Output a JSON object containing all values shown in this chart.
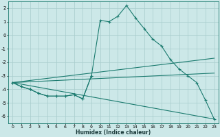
{
  "xlabel": "Humidex (Indice chaleur)",
  "bg_color": "#cce8e8",
  "line_color": "#1a7a6e",
  "grid_color": "#a8cccc",
  "xlim": [
    -0.5,
    23.5
  ],
  "ylim": [
    -6.5,
    2.5
  ],
  "yticks": [
    2,
    1,
    0,
    -1,
    -2,
    -3,
    -4,
    -5,
    -6
  ],
  "xticks": [
    0,
    1,
    2,
    3,
    4,
    5,
    6,
    7,
    8,
    9,
    10,
    11,
    12,
    13,
    14,
    15,
    16,
    17,
    18,
    19,
    20,
    21,
    22,
    23
  ],
  "line_main_x": [
    0,
    1,
    2,
    3,
    4,
    5,
    6,
    7,
    8,
    9,
    10,
    11,
    12,
    13,
    14,
    15,
    16,
    17,
    18,
    19,
    20,
    21,
    22,
    23
  ],
  "line_main_y": [
    -3.5,
    -3.8,
    -4.0,
    -4.3,
    -4.5,
    -4.5,
    -4.5,
    -4.4,
    -4.7,
    -3.0,
    1.1,
    1.0,
    1.4,
    2.2,
    1.3,
    0.5,
    -0.3,
    -0.8,
    -1.8,
    -2.5,
    -3.0,
    -3.5,
    -4.8,
    -6.2
  ],
  "line_partial_x": [
    0,
    1,
    2,
    3,
    4,
    5,
    6,
    7,
    8,
    9
  ],
  "line_partial_y": [
    -3.5,
    -3.8,
    -4.0,
    -4.3,
    -4.5,
    -4.5,
    -4.5,
    -4.4,
    -4.7,
    -3.0
  ],
  "line_trend1_x": [
    0,
    23
  ],
  "line_trend1_y": [
    -3.5,
    -1.7
  ],
  "line_trend2_x": [
    0,
    23
  ],
  "line_trend2_y": [
    -3.5,
    -6.2
  ],
  "line_trend3_x": [
    0,
    23
  ],
  "line_trend3_y": [
    -3.5,
    -2.8
  ]
}
